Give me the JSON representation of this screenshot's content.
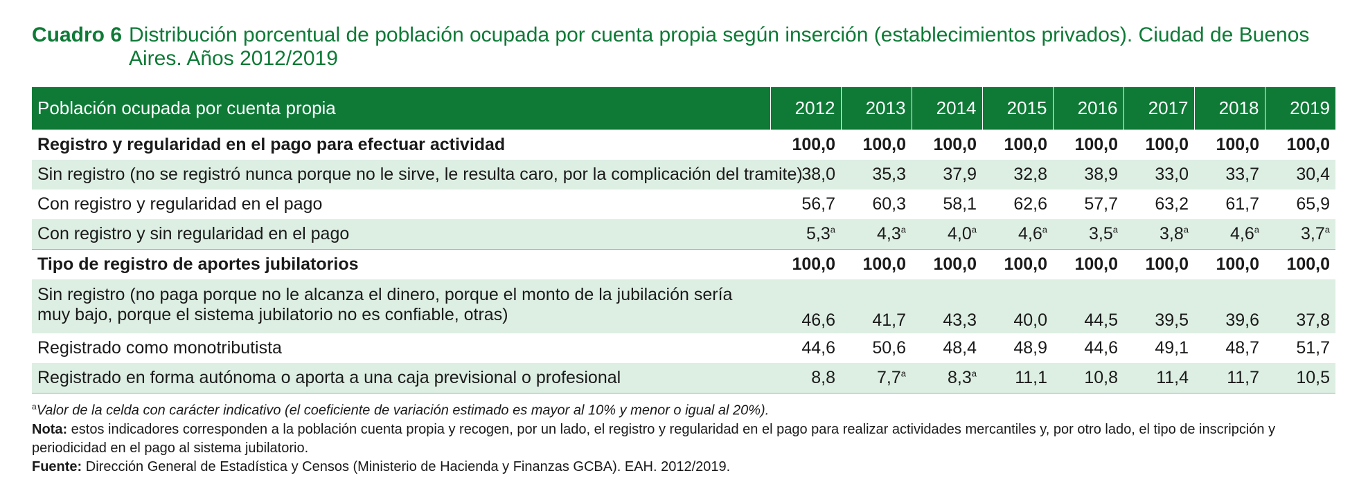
{
  "title": {
    "label": "Cuadro 6",
    "text": "Distribución porcentual de población ocupada por cuenta propia según inserción (establecimientos privados). Ciudad de Buenos Aires. Años 2012/2019"
  },
  "table": {
    "header_label": "Población ocupada por cuenta propia",
    "years": [
      "2012",
      "2013",
      "2014",
      "2015",
      "2016",
      "2017",
      "2018",
      "2019"
    ],
    "rows": [
      {
        "label": "Registro y regularidad en el pago para efectuar actividad",
        "type": "section",
        "shade": false,
        "values": [
          "100,0",
          "100,0",
          "100,0",
          "100,0",
          "100,0",
          "100,0",
          "100,0",
          "100,0"
        ],
        "marks": [
          "",
          "",
          "",
          "",
          "",
          "",
          "",
          ""
        ]
      },
      {
        "label": "Sin registro (no se registró nunca porque no le sirve, le resulta caro, por la complicación del tramite)",
        "type": "item",
        "shade": true,
        "values": [
          "38,0",
          "35,3",
          "37,9",
          "32,8",
          "38,9",
          "33,0",
          "33,7",
          "30,4"
        ],
        "marks": [
          "",
          "",
          "",
          "",
          "",
          "",
          "",
          ""
        ]
      },
      {
        "label": "Con registro y regularidad en el pago",
        "type": "item",
        "shade": false,
        "values": [
          "56,7",
          "60,3",
          "58,1",
          "62,6",
          "57,7",
          "63,2",
          "61,7",
          "65,9"
        ],
        "marks": [
          "",
          "",
          "",
          "",
          "",
          "",
          "",
          ""
        ]
      },
      {
        "label": "Con registro y sin regularidad en el pago",
        "type": "item",
        "shade": true,
        "values": [
          "5,3",
          "4,3",
          "4,0",
          "4,6",
          "3,5",
          "3,8",
          "4,6",
          "3,7"
        ],
        "marks": [
          "a",
          "a",
          "a",
          "a",
          "a",
          "a",
          "a",
          "a"
        ]
      },
      {
        "label": "Tipo de registro de aportes jubilatorios",
        "type": "section",
        "shade": false,
        "values": [
          "100,0",
          "100,0",
          "100,0",
          "100,0",
          "100,0",
          "100,0",
          "100,0",
          "100,0"
        ],
        "marks": [
          "",
          "",
          "",
          "",
          "",
          "",
          "",
          ""
        ]
      },
      {
        "label": "Sin registro (no paga porque no le alcanza el dinero, porque el monto de la jubilación sería muy bajo, porque el sistema jubilatorio no es confiable, otras)",
        "type": "tall",
        "shade": true,
        "values": [
          "46,6",
          "41,7",
          "43,3",
          "40,0",
          "44,5",
          "39,5",
          "39,6",
          "37,8"
        ],
        "marks": [
          "",
          "",
          "",
          "",
          "",
          "",
          "",
          ""
        ]
      },
      {
        "label": "Registrado como monotributista",
        "type": "item",
        "shade": false,
        "values": [
          "44,6",
          "50,6",
          "48,4",
          "48,9",
          "44,6",
          "49,1",
          "48,7",
          "51,7"
        ],
        "marks": [
          "",
          "",
          "",
          "",
          "",
          "",
          "",
          ""
        ]
      },
      {
        "label": "Registrado en forma autónoma o aporta a una caja previsional o profesional",
        "type": "item",
        "shade": true,
        "values": [
          "8,8",
          "7,7",
          "8,3",
          "11,1",
          "10,8",
          "11,4",
          "11,7",
          "10,5"
        ],
        "marks": [
          "",
          "a",
          "a",
          "",
          "",
          "",
          "",
          ""
        ]
      }
    ]
  },
  "notes": {
    "indicative_mark": "a",
    "indicative_text": "Valor de la celda con carácter indicativo (el coeficiente de variación estimado es mayor al 10% y menor o igual al 20%).",
    "nota_label": "Nota:",
    "nota_text": " estos indicadores corresponden a la población cuenta propia y recogen, por un lado, el registro y regularidad en el pago para realizar actividades mercantiles y, por otro lado, el tipo de inscripción y periodicidad en el pago al sistema jubilatorio.",
    "fuente_label": "Fuente:",
    "fuente_text": " Dirección General de Estadística y Censos (Ministerio de Hacienda y Finanzas GCBA). EAH. 2012/2019."
  },
  "colors": {
    "brand_green": "#0e7a36",
    "row_shade": "#ddeee3"
  }
}
